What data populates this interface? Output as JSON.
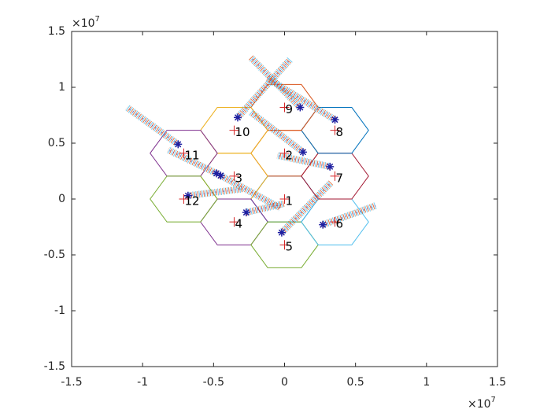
{
  "chart_data": {
    "type": "scatter",
    "xlim": [
      -1.5,
      1.5
    ],
    "ylim": [
      -1.5,
      1.5
    ],
    "xticks": [
      -1.5,
      -1,
      -0.5,
      0,
      0.5,
      1,
      1.5
    ],
    "yticks": [
      -1.5,
      -1,
      -0.5,
      0,
      0.5,
      1,
      1.5
    ],
    "x_scale_label": {
      "base": "×10",
      "exponent": "7"
    },
    "y_scale_label": {
      "base": "×10",
      "exponent": "7"
    },
    "cell_radius": 0.237,
    "center_color": "#d62728",
    "user_color": "#1f1fa0",
    "cells": [
      {
        "label": "1",
        "x": 0,
        "y": 0,
        "color": "#0072bd"
      },
      {
        "label": "2",
        "x": 0,
        "y": 0.41,
        "color": "#d95319"
      },
      {
        "label": "3",
        "x": -0.355,
        "y": 0.205,
        "color": "#edb120"
      },
      {
        "label": "4",
        "x": -0.355,
        "y": -0.205,
        "color": "#7e2f8e"
      },
      {
        "label": "5",
        "x": 0,
        "y": -0.41,
        "color": "#77ac30"
      },
      {
        "label": "6",
        "x": 0.355,
        "y": -0.205,
        "color": "#4dbeee"
      },
      {
        "label": "7",
        "x": 0.355,
        "y": 0.205,
        "color": "#a2142f"
      },
      {
        "label": "8",
        "x": 0.355,
        "y": 0.615,
        "color": "#0072bd"
      },
      {
        "label": "9",
        "x": 0,
        "y": 0.82,
        "color": "#d95319"
      },
      {
        "label": "10",
        "x": -0.355,
        "y": 0.615,
        "color": "#edb120"
      },
      {
        "label": "11",
        "x": -0.71,
        "y": 0.41,
        "color": "#7e2f8e"
      },
      {
        "label": "12",
        "x": -0.71,
        "y": 0,
        "color": "#77ac30"
      }
    ],
    "series": [
      {
        "x": [
          -0.68,
          -0.3
        ],
        "y": [
          0.03,
          0.09
        ]
      },
      {
        "x": [
          -0.48,
          -0.82
        ],
        "y": [
          0.23,
          0.44
        ]
      },
      {
        "x": [
          -0.75,
          -1.11
        ],
        "y": [
          0.49,
          0.82
        ]
      },
      {
        "x": [
          -0.27,
          0.0
        ],
        "y": [
          -0.12,
          -0.04
        ]
      },
      {
        "x": [
          -0.45,
          -0.03
        ],
        "y": [
          0.21,
          -0.08
        ]
      },
      {
        "x": [
          -0.02,
          0.33
        ],
        "y": [
          -0.3,
          0.15
        ]
      },
      {
        "x": [
          0.27,
          0.64
        ],
        "y": [
          -0.23,
          -0.06
        ]
      },
      {
        "x": [
          0.32,
          -0.05
        ],
        "y": [
          0.29,
          0.39
        ]
      },
      {
        "x": [
          0.13,
          -0.24
        ],
        "y": [
          0.42,
          0.78
        ]
      },
      {
        "x": [
          -0.33,
          0.04
        ],
        "y": [
          0.73,
          1.25
        ]
      },
      {
        "x": [
          0.11,
          -0.24
        ],
        "y": [
          0.82,
          1.27
        ]
      },
      {
        "x": [
          0.355,
          -0.12
        ],
        "y": [
          0.71,
          1.08
        ]
      }
    ]
  }
}
